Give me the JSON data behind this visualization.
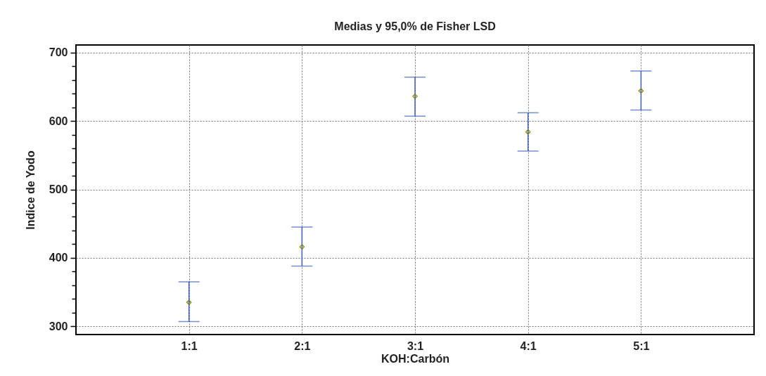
{
  "chart_data": {
    "type": "scatter",
    "title": "Medias y 95,0% de Fisher LSD",
    "xlabel": "KOH:Carbón",
    "ylabel": "Indice de Yodo",
    "categories": [
      "1:1",
      "2:1",
      "3:1",
      "4:1",
      "5:1"
    ],
    "series": [
      {
        "color": "#808000",
        "values": [
          335,
          416,
          636,
          584,
          644
        ],
        "errors": [
          [
            307,
            365
          ],
          [
            388,
            445
          ],
          [
            607,
            664
          ],
          [
            556,
            612
          ],
          [
            616,
            673
          ]
        ]
      }
    ],
    "ylim": [
      288,
      711
    ],
    "yticks": [
      300,
      {
        "value": 320,
        "label": null
      },
      {
        "value": 340,
        "label": null
      },
      {
        "value": 360,
        "label": null
      },
      {
        "value": 380,
        "label": null
      },
      400,
      {
        "value": 420,
        "label": null
      },
      {
        "value": 440,
        "label": null
      },
      {
        "value": 460,
        "label": null
      },
      {
        "value": 480,
        "label": null
      },
      500,
      {
        "value": 520,
        "label": null
      },
      {
        "value": 540,
        "label": null
      },
      {
        "value": 560,
        "label": null
      },
      {
        "value": 580,
        "label": null
      },
      600,
      {
        "value": 620,
        "label": null
      },
      {
        "value": 640,
        "label": null
      },
      {
        "value": 660,
        "label": null
      },
      {
        "value": 680,
        "label": null
      },
      700
    ],
    "grid": true,
    "marker": "diamond",
    "legend": false
  }
}
